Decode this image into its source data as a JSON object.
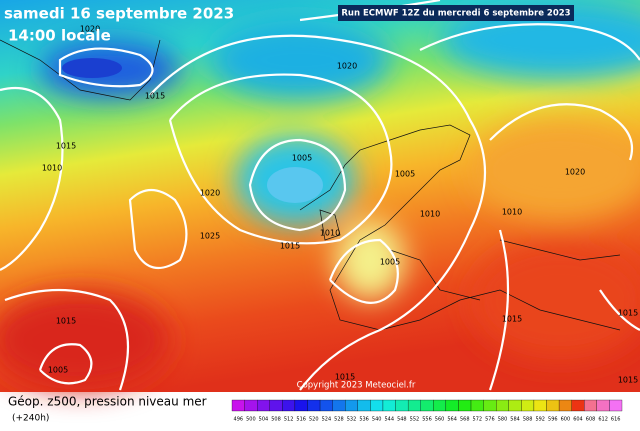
{
  "header": {
    "date": "samedi 16 septembre 2023",
    "time": "14:00 locale",
    "run": "Run ECMWF 12Z du mercredi 6 septembre 2023"
  },
  "copyright": "Copyright 2023 Meteociel.fr",
  "footer": {
    "title": "Géop. z500, pression niveau mer",
    "range": "(+240h)"
  },
  "isobar_labels": [
    "1020",
    "1020",
    "1015",
    "1020",
    "1015",
    "1010",
    "1005",
    "1005",
    "1020",
    "1010",
    "1025",
    "1015",
    "1010",
    "1005",
    "1010",
    "1015",
    "1005",
    "1015",
    "1015",
    "1015",
    "1015"
  ],
  "scale": {
    "ticks": [
      496,
      500,
      504,
      508,
      512,
      516,
      520,
      524,
      528,
      532,
      536,
      540,
      544,
      548,
      552,
      556,
      560,
      564,
      568,
      572,
      576,
      580,
      584,
      588,
      592,
      596,
      600,
      604,
      608,
      612,
      616
    ]
  }
}
